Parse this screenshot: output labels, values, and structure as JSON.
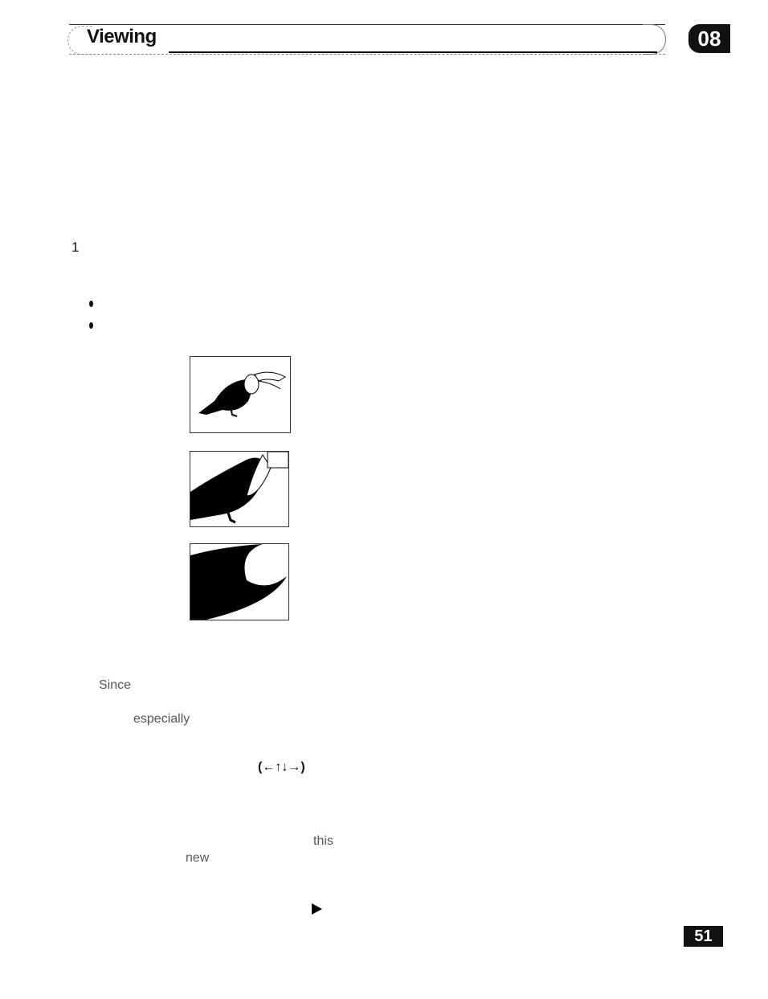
{
  "header": {
    "title": "Viewing",
    "chapter": "08"
  },
  "steps": {
    "number": "1"
  },
  "zoom_images": {
    "count": 3
  },
  "text_fragments": {
    "since": "Since",
    "especially": "especially",
    "arrows": "(←↑↓→)",
    "this": "this",
    "new": "new"
  },
  "icons": {
    "play": "play-triangle-icon"
  },
  "footer": {
    "page_number": "51"
  }
}
